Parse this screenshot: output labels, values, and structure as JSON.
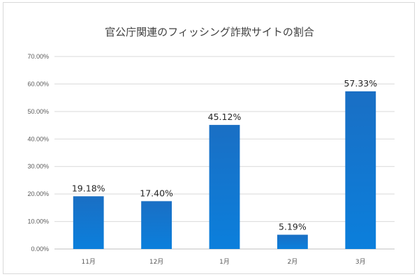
{
  "chart_data": {
    "type": "bar",
    "title": "官公庁関連のフィッシング詐欺サイトの割合",
    "categories": [
      "11月",
      "12月",
      "1月",
      "2月",
      "3月"
    ],
    "values": [
      19.18,
      17.4,
      45.12,
      5.19,
      57.33
    ],
    "data_labels": [
      "19.18%",
      "17.40%",
      "45.12%",
      "5.19%",
      "57.33%"
    ],
    "ylim": [
      0,
      70
    ],
    "yticks": [
      0,
      10,
      20,
      30,
      40,
      50,
      60,
      70
    ],
    "ytick_labels": [
      "0.00%",
      "10.00%",
      "20.00%",
      "30.00%",
      "40.00%",
      "50.00%",
      "60.00%",
      "70.00%"
    ],
    "grid": true,
    "legend": false,
    "bar_color_top": "#1a6fc4",
    "bar_color_bottom": "#0b7fdc"
  }
}
